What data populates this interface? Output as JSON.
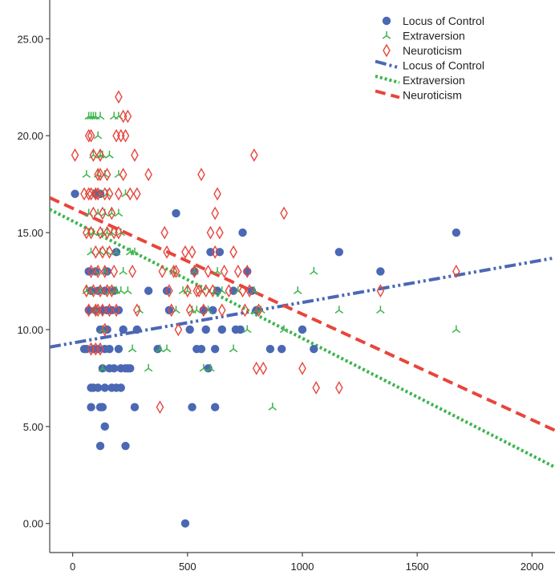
{
  "chart_data": {
    "type": "scatter",
    "title": "",
    "xlabel": "",
    "ylabel": "",
    "xlim": [
      -100,
      2100
    ],
    "ylim": [
      -1.5,
      27
    ],
    "x_ticks": [
      0,
      500,
      1000,
      1500,
      2000
    ],
    "x_tick_labels": [
      "0",
      "500",
      "1000",
      "1500",
      "2000"
    ],
    "y_ticks": [
      0,
      5,
      10,
      15,
      20,
      25
    ],
    "y_tick_labels": [
      "0.00",
      "5.00",
      "10.00",
      "15.00",
      "20.00",
      "25.00"
    ],
    "grid": false,
    "legend_position": "top-right",
    "series": [
      {
        "name": "Locus of Control",
        "kind": "points",
        "marker": "circle",
        "color": "#4a68b4",
        "points": [
          [
            10,
            17
          ],
          [
            50,
            9
          ],
          [
            60,
            9
          ],
          [
            70,
            13
          ],
          [
            70,
            11
          ],
          [
            80,
            7
          ],
          [
            80,
            6
          ],
          [
            80,
            12
          ],
          [
            90,
            9
          ],
          [
            90,
            7
          ],
          [
            100,
            17
          ],
          [
            100,
            11
          ],
          [
            100,
            13
          ],
          [
            110,
            12
          ],
          [
            110,
            9
          ],
          [
            110,
            7
          ],
          [
            120,
            4
          ],
          [
            120,
            17
          ],
          [
            120,
            10
          ],
          [
            120,
            6
          ],
          [
            130,
            11
          ],
          [
            130,
            8
          ],
          [
            130,
            6
          ],
          [
            140,
            5
          ],
          [
            140,
            9
          ],
          [
            140,
            7
          ],
          [
            140,
            12
          ],
          [
            150,
            13
          ],
          [
            150,
            11
          ],
          [
            150,
            10
          ],
          [
            160,
            9
          ],
          [
            160,
            8
          ],
          [
            170,
            7
          ],
          [
            170,
            11
          ],
          [
            180,
            8
          ],
          [
            180,
            12
          ],
          [
            190,
            14
          ],
          [
            190,
            7
          ],
          [
            200,
            11
          ],
          [
            200,
            9
          ],
          [
            210,
            8
          ],
          [
            210,
            7
          ],
          [
            220,
            10
          ],
          [
            230,
            4
          ],
          [
            230,
            8
          ],
          [
            240,
            8
          ],
          [
            250,
            8
          ],
          [
            270,
            6
          ],
          [
            280,
            10
          ],
          [
            330,
            12
          ],
          [
            370,
            9
          ],
          [
            410,
            12
          ],
          [
            420,
            11
          ],
          [
            450,
            16
          ],
          [
            490,
            0
          ],
          [
            510,
            10
          ],
          [
            520,
            6
          ],
          [
            530,
            13
          ],
          [
            540,
            9
          ],
          [
            560,
            9
          ],
          [
            570,
            11
          ],
          [
            580,
            10
          ],
          [
            590,
            8
          ],
          [
            600,
            14
          ],
          [
            610,
            11
          ],
          [
            620,
            6
          ],
          [
            620,
            9
          ],
          [
            630,
            12
          ],
          [
            640,
            14
          ],
          [
            650,
            10
          ],
          [
            700,
            12
          ],
          [
            710,
            10
          ],
          [
            730,
            10
          ],
          [
            740,
            15
          ],
          [
            760,
            13
          ],
          [
            780,
            12
          ],
          [
            800,
            11
          ],
          [
            860,
            9
          ],
          [
            910,
            9
          ],
          [
            1000,
            10
          ],
          [
            1050,
            9
          ],
          [
            1160,
            14
          ],
          [
            1340,
            13
          ],
          [
            1670,
            15
          ]
        ]
      },
      {
        "name": "Extraversion",
        "kind": "points",
        "marker": "tri",
        "color": "#3cb44b",
        "points": [
          [
            60,
            18
          ],
          [
            60,
            12
          ],
          [
            70,
            21
          ],
          [
            70,
            16
          ],
          [
            70,
            15
          ],
          [
            80,
            21
          ],
          [
            80,
            14
          ],
          [
            80,
            12
          ],
          [
            90,
            21
          ],
          [
            90,
            19
          ],
          [
            90,
            17
          ],
          [
            90,
            15
          ],
          [
            100,
            21
          ],
          [
            100,
            13
          ],
          [
            100,
            11
          ],
          [
            110,
            20
          ],
          [
            110,
            18
          ],
          [
            110,
            16
          ],
          [
            120,
            21
          ],
          [
            120,
            19
          ],
          [
            120,
            17
          ],
          [
            120,
            14
          ],
          [
            120,
            12
          ],
          [
            130,
            19
          ],
          [
            130,
            15
          ],
          [
            130,
            10
          ],
          [
            130,
            8
          ],
          [
            140,
            18
          ],
          [
            140,
            16
          ],
          [
            140,
            13
          ],
          [
            150,
            17
          ],
          [
            150,
            15
          ],
          [
            150,
            14
          ],
          [
            160,
            19
          ],
          [
            160,
            12
          ],
          [
            170,
            16
          ],
          [
            170,
            15
          ],
          [
            180,
            21
          ],
          [
            180,
            12
          ],
          [
            190,
            14
          ],
          [
            190,
            12
          ],
          [
            200,
            21
          ],
          [
            200,
            18
          ],
          [
            200,
            16
          ],
          [
            210,
            15
          ],
          [
            210,
            12
          ],
          [
            220,
            13
          ],
          [
            230,
            17
          ],
          [
            240,
            12
          ],
          [
            250,
            14
          ],
          [
            260,
            9
          ],
          [
            270,
            14
          ],
          [
            290,
            11
          ],
          [
            330,
            8
          ],
          [
            380,
            9
          ],
          [
            410,
            9
          ],
          [
            440,
            13
          ],
          [
            450,
            11
          ],
          [
            480,
            12
          ],
          [
            500,
            12
          ],
          [
            520,
            11
          ],
          [
            530,
            13
          ],
          [
            540,
            11
          ],
          [
            560,
            12
          ],
          [
            570,
            8
          ],
          [
            590,
            11
          ],
          [
            600,
            8
          ],
          [
            620,
            12
          ],
          [
            630,
            13
          ],
          [
            650,
            12
          ],
          [
            700,
            9
          ],
          [
            720,
            12
          ],
          [
            760,
            10
          ],
          [
            790,
            12
          ],
          [
            800,
            11
          ],
          [
            820,
            11
          ],
          [
            870,
            6
          ],
          [
            920,
            10
          ],
          [
            980,
            12
          ],
          [
            1050,
            13
          ],
          [
            1160,
            11
          ],
          [
            1340,
            11
          ],
          [
            1670,
            10
          ]
        ]
      },
      {
        "name": "Neuroticism",
        "kind": "points",
        "marker": "diamond",
        "color": "#e8453c",
        "points": [
          [
            10,
            19
          ],
          [
            50,
            17
          ],
          [
            60,
            15
          ],
          [
            60,
            12
          ],
          [
            70,
            20
          ],
          [
            70,
            17
          ],
          [
            70,
            11
          ],
          [
            80,
            20
          ],
          [
            80,
            17
          ],
          [
            80,
            15
          ],
          [
            80,
            13
          ],
          [
            80,
            9
          ],
          [
            90,
            19
          ],
          [
            90,
            16
          ],
          [
            90,
            12
          ],
          [
            100,
            17
          ],
          [
            100,
            14
          ],
          [
            100,
            11
          ],
          [
            100,
            9
          ],
          [
            110,
            18
          ],
          [
            110,
            17
          ],
          [
            110,
            13
          ],
          [
            110,
            11
          ],
          [
            120,
            19
          ],
          [
            120,
            18
          ],
          [
            120,
            15
          ],
          [
            120,
            12
          ],
          [
            120,
            9
          ],
          [
            130,
            16
          ],
          [
            130,
            14
          ],
          [
            130,
            11
          ],
          [
            140,
            17
          ],
          [
            140,
            13
          ],
          [
            140,
            10
          ],
          [
            150,
            18
          ],
          [
            150,
            15
          ],
          [
            150,
            12
          ],
          [
            160,
            17
          ],
          [
            160,
            14
          ],
          [
            160,
            11
          ],
          [
            170,
            16
          ],
          [
            170,
            12
          ],
          [
            180,
            15
          ],
          [
            180,
            13
          ],
          [
            190,
            20
          ],
          [
            190,
            11
          ],
          [
            200,
            22
          ],
          [
            200,
            17
          ],
          [
            200,
            15
          ],
          [
            210,
            20
          ],
          [
            220,
            21
          ],
          [
            220,
            18
          ],
          [
            230,
            20
          ],
          [
            240,
            21
          ],
          [
            250,
            17
          ],
          [
            260,
            13
          ],
          [
            270,
            19
          ],
          [
            280,
            17
          ],
          [
            280,
            11
          ],
          [
            330,
            18
          ],
          [
            380,
            6
          ],
          [
            390,
            13
          ],
          [
            400,
            15
          ],
          [
            410,
            14
          ],
          [
            420,
            12
          ],
          [
            430,
            11
          ],
          [
            440,
            13
          ],
          [
            450,
            13
          ],
          [
            460,
            10
          ],
          [
            490,
            14
          ],
          [
            500,
            12
          ],
          [
            510,
            11
          ],
          [
            520,
            14
          ],
          [
            530,
            13
          ],
          [
            540,
            12
          ],
          [
            550,
            12
          ],
          [
            560,
            18
          ],
          [
            570,
            11
          ],
          [
            580,
            12
          ],
          [
            590,
            13
          ],
          [
            600,
            15
          ],
          [
            610,
            12
          ],
          [
            620,
            16
          ],
          [
            620,
            14
          ],
          [
            630,
            17
          ],
          [
            640,
            15
          ],
          [
            650,
            11
          ],
          [
            660,
            13
          ],
          [
            680,
            12
          ],
          [
            700,
            14
          ],
          [
            720,
            13
          ],
          [
            740,
            12
          ],
          [
            750,
            11
          ],
          [
            760,
            13
          ],
          [
            770,
            12
          ],
          [
            790,
            19
          ],
          [
            800,
            8
          ],
          [
            810,
            11
          ],
          [
            830,
            8
          ],
          [
            920,
            16
          ],
          [
            1000,
            8
          ],
          [
            1060,
            7
          ],
          [
            1160,
            7
          ],
          [
            1340,
            12
          ],
          [
            1670,
            13
          ]
        ]
      },
      {
        "name": "Locus of Control",
        "kind": "fit-line",
        "style": "dash-dot-dot",
        "color": "#4a68b4",
        "x": [
          -100,
          2100
        ],
        "y": [
          9.1,
          13.7
        ]
      },
      {
        "name": "Extraversion",
        "kind": "fit-line",
        "style": "dotted",
        "color": "#3cb44b",
        "x": [
          -100,
          2100
        ],
        "y": [
          16.2,
          2.9
        ]
      },
      {
        "name": "Neuroticism",
        "kind": "fit-line",
        "style": "dashed",
        "color": "#e8453c",
        "x": [
          -100,
          2100
        ],
        "y": [
          16.8,
          4.8
        ]
      }
    ]
  }
}
